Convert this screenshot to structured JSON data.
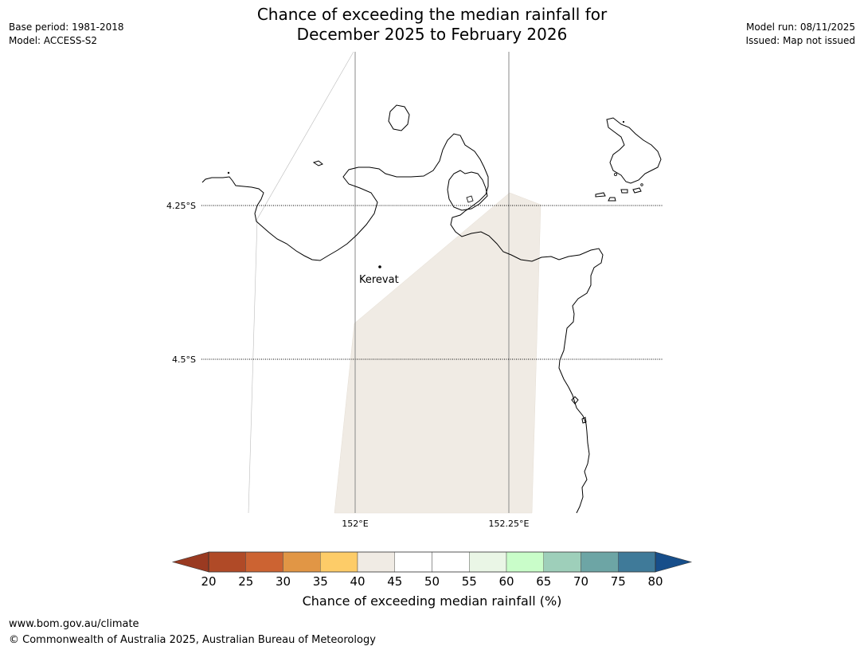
{
  "title": {
    "line1": "Chance of exceeding the median rainfall for",
    "line2": "December 2025 to February 2026"
  },
  "meta_left": {
    "base_period": "Base period: 1981-2018",
    "model": "Model: ACCESS-S2"
  },
  "meta_right": {
    "model_run": "Model run: 08/11/2025",
    "issued": "Issued: Map not issued"
  },
  "map": {
    "latitude_labels": [
      "4.25°S",
      "4.5°S"
    ],
    "longitude_labels": [
      "152°E",
      "152.25°E"
    ],
    "place": {
      "name": "Kerevat"
    },
    "forecast_fill_color": "#f0ebe4"
  },
  "colorbar": {
    "ticks": [
      "20",
      "25",
      "30",
      "35",
      "40",
      "45",
      "50",
      "55",
      "60",
      "65",
      "70",
      "75",
      "80"
    ],
    "under_color": "#9a3a21",
    "over_color": "#174e8a",
    "colors": [
      "#b04a27",
      "#cc6332",
      "#e19645",
      "#fdcc68",
      "#f0ebe4",
      "#ffffff",
      "#ffffff",
      "#eaf6e6",
      "#c9fdc9",
      "#9ecfba",
      "#6da5a5",
      "#3f7a99"
    ],
    "label": "Chance of exceeding median rainfall (%)"
  },
  "footer": {
    "url": "www.bom.gov.au/climate",
    "copyright": "© Commonwealth of Australia 2025, Australian Bureau of Meteorology"
  }
}
